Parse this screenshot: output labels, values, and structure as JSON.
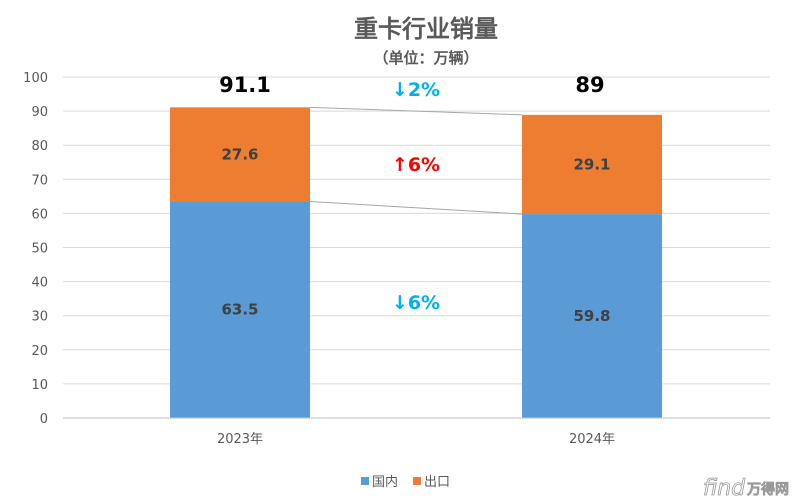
{
  "chart_data": {
    "type": "bar",
    "stacked": true,
    "title": "重卡行业销量",
    "subtitle": "（单位：万辆）",
    "categories": [
      "2023年",
      "2024年"
    ],
    "series": [
      {
        "name": "国内",
        "values": [
          63.5,
          59.8
        ],
        "labels": [
          "63.5",
          "59.8"
        ],
        "color": "#5B9BD5"
      },
      {
        "name": "出口",
        "values": [
          27.6,
          29.1
        ],
        "labels": [
          "27.6",
          "29.1"
        ],
        "color": "#ED7D31"
      }
    ],
    "totals": [
      "91.1",
      "89"
    ],
    "ylim": [
      0,
      100
    ],
    "yticks": [
      "0",
      "10",
      "20",
      "30",
      "40",
      "50",
      "60",
      "70",
      "80",
      "90",
      "100"
    ],
    "grid": true,
    "legend_position": "bottom",
    "annotations": {
      "total_change": {
        "text": "↓2%",
        "color": "#00B0F0"
      },
      "export_change": {
        "text": "↑6%",
        "color": "#FF0000"
      },
      "domestic_change": {
        "text": "↓6%",
        "color": "#00B0F0"
      }
    },
    "connector_color": "#A6A6A6",
    "gridline_color": "#D9D9D9"
  },
  "watermark": {
    "latin": "find",
    "cjk": "万得网"
  }
}
